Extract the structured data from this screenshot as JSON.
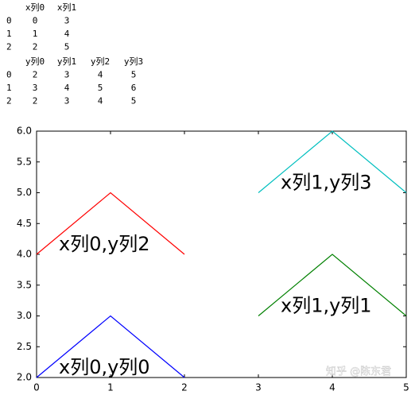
{
  "tables": [
    {
      "columns": [
        "x列0",
        "x列1"
      ],
      "rows": [
        {
          "index": "0",
          "cells": [
            "0",
            "3"
          ]
        },
        {
          "index": "1",
          "cells": [
            "1",
            "4"
          ]
        },
        {
          "index": "2",
          "cells": [
            "2",
            "5"
          ]
        }
      ]
    },
    {
      "columns": [
        "y列0",
        "y列1",
        "y列2",
        "y列3"
      ],
      "rows": [
        {
          "index": "0",
          "cells": [
            "2",
            "3",
            "4",
            "5"
          ]
        },
        {
          "index": "1",
          "cells": [
            "3",
            "4",
            "5",
            "6"
          ]
        },
        {
          "index": "2",
          "cells": [
            "2",
            "3",
            "4",
            "5"
          ]
        }
      ]
    }
  ],
  "chart_data": {
    "type": "line",
    "series": [
      {
        "name": "x列0,y列0",
        "color": "#0000ff",
        "x": [
          0,
          1,
          2
        ],
        "values": [
          2,
          3,
          2
        ]
      },
      {
        "name": "x列0,y列2",
        "color": "#ff0000",
        "x": [
          0,
          1,
          2
        ],
        "values": [
          4,
          5,
          4
        ]
      },
      {
        "name": "x列1,y列1",
        "color": "#008000",
        "x": [
          3,
          4,
          5
        ],
        "values": [
          3,
          4,
          3
        ]
      },
      {
        "name": "x列1,y列3",
        "color": "#00bfbf",
        "x": [
          3,
          4,
          5
        ],
        "values": [
          5,
          6,
          5
        ]
      }
    ],
    "xlim": [
      0,
      5
    ],
    "xticks": [
      0,
      1,
      2,
      3,
      4,
      5
    ],
    "ylim": [
      2,
      6
    ],
    "yticks": [
      {
        "value": 2,
        "label": "2.0"
      },
      2.5,
      {
        "value": 3,
        "label": "3.0"
      },
      3.5,
      {
        "value": 4,
        "label": "4.0"
      },
      4.5,
      {
        "value": 5,
        "label": "5.0"
      },
      5.5,
      {
        "value": 6,
        "label": "6.0"
      }
    ],
    "grid": false,
    "watermark": "知乎 @陈东君"
  }
}
